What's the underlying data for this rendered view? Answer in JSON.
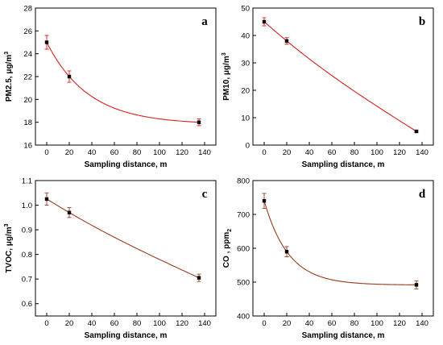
{
  "chart_data": [
    {
      "type": "scatter",
      "panel_label": "a",
      "xlabel": "Sampling distance, m",
      "ylabel": "PM2.5, μg/m",
      "ylabel_sup": "3",
      "xlim": [
        -10,
        150
      ],
      "ylim": [
        16,
        28
      ],
      "xticks": [
        0,
        20,
        40,
        60,
        80,
        100,
        120,
        140
      ],
      "yticks": [
        16,
        18,
        20,
        22,
        24,
        26,
        28
      ],
      "x": [
        0,
        20,
        135
      ],
      "y": [
        25.0,
        22.0,
        18.0
      ],
      "yerr": [
        0.6,
        0.5,
        0.3
      ],
      "fit": "exponential decay",
      "fit_color": "#d62020",
      "marker_color": "#000000"
    },
    {
      "type": "scatter",
      "panel_label": "b",
      "xlabel": "Sampling distance, m",
      "ylabel": "PM10, μg/m",
      "ylabel_sup": "3",
      "xlim": [
        -10,
        150
      ],
      "ylim": [
        0,
        50
      ],
      "xticks": [
        0,
        20,
        40,
        60,
        80,
        100,
        120,
        140
      ],
      "yticks": [
        0,
        10,
        20,
        30,
        40,
        50
      ],
      "x": [
        0,
        20,
        135
      ],
      "y": [
        45.0,
        38.0,
        5.0
      ],
      "yerr": [
        1.5,
        1.2,
        0.3
      ],
      "fit": "polynomial",
      "fit_color": "#d62020",
      "marker_color": "#000000"
    },
    {
      "type": "scatter",
      "panel_label": "c",
      "xlabel": "Sampling distance, m",
      "ylabel": "TVOC, μg/m",
      "ylabel_sup": "3",
      "xlim": [
        -10,
        150
      ],
      "ylim": [
        0.55,
        1.1
      ],
      "xticks": [
        0,
        20,
        40,
        60,
        80,
        100,
        120,
        140
      ],
      "yticks": [
        0.6,
        0.7,
        0.8,
        0.9,
        1.0,
        1.1
      ],
      "yticklabels": [
        "0.6",
        "0.7",
        "0.8",
        "0.9",
        "1.0",
        "1.1"
      ],
      "x": [
        0,
        20,
        135
      ],
      "y": [
        1.025,
        0.97,
        0.705
      ],
      "yerr": [
        0.025,
        0.02,
        0.015
      ],
      "fit": "polynomial",
      "fit_color": "#9c3a1e",
      "marker_color": "#000000"
    },
    {
      "type": "scatter",
      "panel_label": "d",
      "xlabel": "Sampling distance, m",
      "ylabel": "CO , ppm",
      "ylabel_sub": "2",
      "xlim": [
        -10,
        150
      ],
      "ylim": [
        400,
        800
      ],
      "xticks": [
        0,
        20,
        40,
        60,
        80,
        100,
        120,
        140
      ],
      "yticks": [
        400,
        500,
        600,
        700,
        800
      ],
      "x": [
        0,
        20,
        135
      ],
      "y": [
        740,
        590,
        492
      ],
      "yerr": [
        22,
        15,
        12
      ],
      "fit": "exponential decay",
      "fit_color": "#9c3a1e",
      "marker_color": "#000000"
    }
  ]
}
